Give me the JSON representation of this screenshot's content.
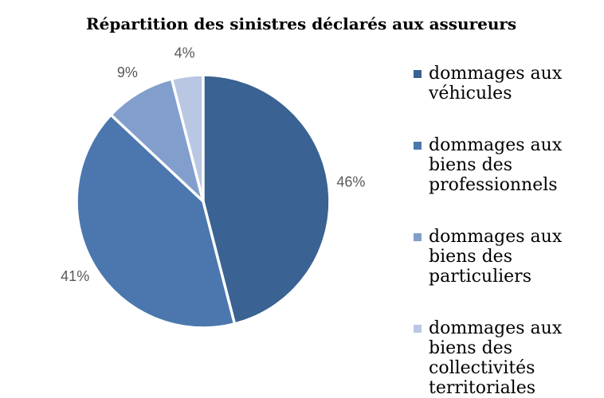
{
  "title": "Répartition des sinistres déclarés aux assureurs",
  "chart_data": {
    "type": "pie",
    "title": "Répartition des sinistres déclarés aux assureurs",
    "categories": [
      "dommages aux véhicules",
      "dommages aux biens des professionnels",
      "dommages aux biens des particuliers",
      "dommages aux biens des collectivités territoriales"
    ],
    "values": [
      46,
      41,
      9,
      4
    ],
    "data_labels": [
      "46%",
      "41%",
      "9%",
      "4%"
    ],
    "colors": [
      "#3A6292",
      "#4B77AE",
      "#829ECC",
      "#B9C7E2"
    ],
    "start_angle_deg": 0,
    "direction": "clockwise",
    "legend_position": "right",
    "data_label_color": "#595959",
    "separator_color": "#FFFFFF",
    "background_color": "#FFFFFF"
  },
  "legend": {
    "items": [
      {
        "label": "dommages aux véhicules"
      },
      {
        "label": "dommages aux biens des professionnels"
      },
      {
        "label": "dommages aux biens des particuliers"
      },
      {
        "label": "dommages aux biens des collectivités territoriales"
      }
    ]
  }
}
